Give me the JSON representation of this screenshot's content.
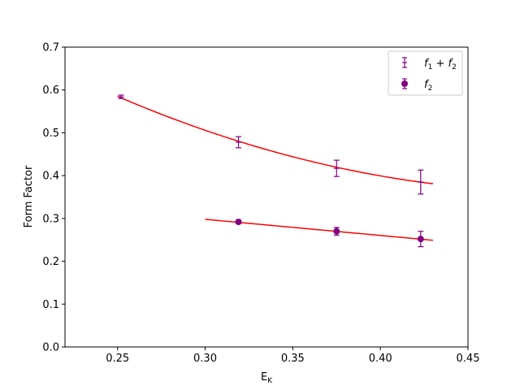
{
  "chart_data": {
    "type": "scatter",
    "title": "",
    "xlabel": "E_K",
    "xlabel_main": "E",
    "xlabel_sub": "K",
    "ylabel": "Form Factor",
    "xlim": [
      0.22,
      0.45
    ],
    "ylim": [
      0.0,
      0.7
    ],
    "x_ticks": [
      0.25,
      0.3,
      0.35,
      0.4,
      0.45
    ],
    "x_tick_labels": [
      "0.25",
      "0.30",
      "0.35",
      "0.40",
      "0.45"
    ],
    "y_ticks": [
      0.0,
      0.1,
      0.2,
      0.3,
      0.4,
      0.5,
      0.6,
      0.7
    ],
    "y_tick_labels": [
      "0.0",
      "0.1",
      "0.2",
      "0.3",
      "0.4",
      "0.5",
      "0.6",
      "0.7"
    ],
    "grid": false,
    "legend_position": "top-right",
    "marker_color": "#800080",
    "fit_color": "#ff0000",
    "series": [
      {
        "name": "f1+f2",
        "label_parts": [
          "f",
          "1",
          " + ",
          "f",
          "2"
        ],
        "marker": "errorbar",
        "x": [
          0.252,
          0.319,
          0.375,
          0.423
        ],
        "y": [
          0.584,
          0.478,
          0.417,
          0.385
        ],
        "yerr": [
          0.004,
          0.013,
          0.019,
          0.028
        ]
      },
      {
        "name": "f2",
        "label_parts": [
          "f",
          "2"
        ],
        "marker": "circle",
        "x": [
          0.319,
          0.375,
          0.423
        ],
        "y": [
          0.292,
          0.27,
          0.252
        ],
        "yerr": [
          0.004,
          0.009,
          0.018
        ]
      }
    ],
    "fits": [
      {
        "name": "fit-f1-f2",
        "type": "quadratic",
        "x_range": [
          0.25,
          0.43
        ],
        "points": [
          [
            0.25,
            0.585
          ],
          [
            0.34,
            0.455
          ],
          [
            0.43,
            0.381
          ]
        ]
      },
      {
        "name": "fit-f2",
        "type": "linear",
        "x_range": [
          0.3,
          0.43
        ],
        "points": [
          [
            0.3,
            0.298
          ],
          [
            0.43,
            0.249
          ]
        ]
      }
    ]
  }
}
